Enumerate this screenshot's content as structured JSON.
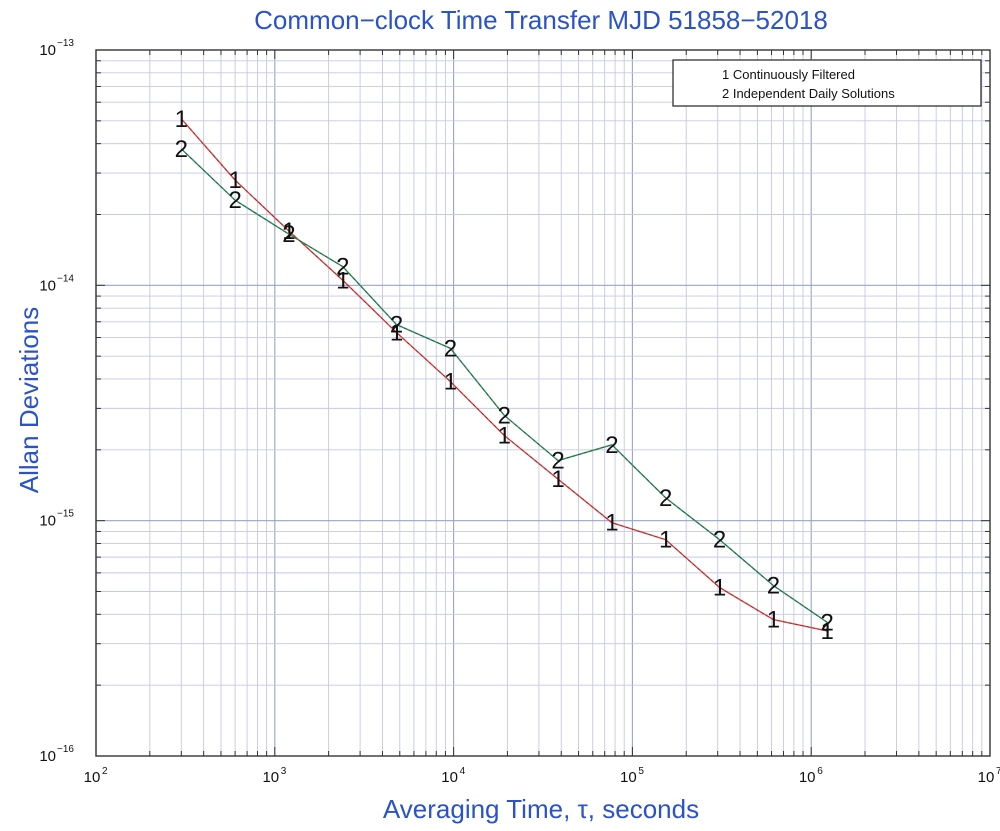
{
  "chart_data": {
    "type": "line",
    "title": "Common−clock Time Transfer MJD 51858−52018",
    "xlabel": "Averaging Time, τ, seconds",
    "ylabel": "Allan Deviations",
    "x_scale": "log",
    "y_scale": "log",
    "xlim": [
      100,
      10000000
    ],
    "ylim": [
      1e-16,
      1e-13
    ],
    "grid": true,
    "x_ticks": [
      {
        "base": "10",
        "exp": "2"
      },
      {
        "base": "10",
        "exp": "3"
      },
      {
        "base": "10",
        "exp": "4"
      },
      {
        "base": "10",
        "exp": "5"
      },
      {
        "base": "10",
        "exp": "6"
      },
      {
        "base": "10",
        "exp": "7"
      }
    ],
    "y_ticks": [
      {
        "base": "10",
        "exp": "−16"
      },
      {
        "base": "10",
        "exp": "−15"
      },
      {
        "base": "10",
        "exp": "−14"
      },
      {
        "base": "10",
        "exp": "−13"
      }
    ],
    "legend_position": "top-right",
    "series": [
      {
        "name": "1 Continuously Filtered",
        "marker": "1",
        "color": "#e0433f",
        "x": [
          300,
          600,
          1200,
          2400,
          4800,
          9600,
          19200,
          38400,
          76800,
          153600,
          307200,
          614400,
          1228800
        ],
        "y": [
          5.1e-14,
          2.8e-14,
          1.7e-14,
          1.05e-14,
          6.3e-15,
          3.9e-15,
          2.3e-15,
          1.5e-15,
          9.8e-16,
          8.3e-16,
          5.2e-16,
          3.8e-16,
          3.4e-16
        ]
      },
      {
        "name": "2 Independent Daily Solutions",
        "marker": "2",
        "color": "#2f8f5a",
        "x": [
          300,
          600,
          1200,
          2400,
          4800,
          9600,
          19200,
          38400,
          76800,
          153600,
          307200,
          614400,
          1228800
        ],
        "y": [
          3.8e-14,
          2.3e-14,
          1.65e-14,
          1.2e-14,
          6.8e-15,
          5.4e-15,
          2.8e-15,
          1.8e-15,
          2.1e-15,
          1.25e-15,
          8.3e-16,
          5.3e-16,
          3.7e-16
        ]
      }
    ]
  }
}
